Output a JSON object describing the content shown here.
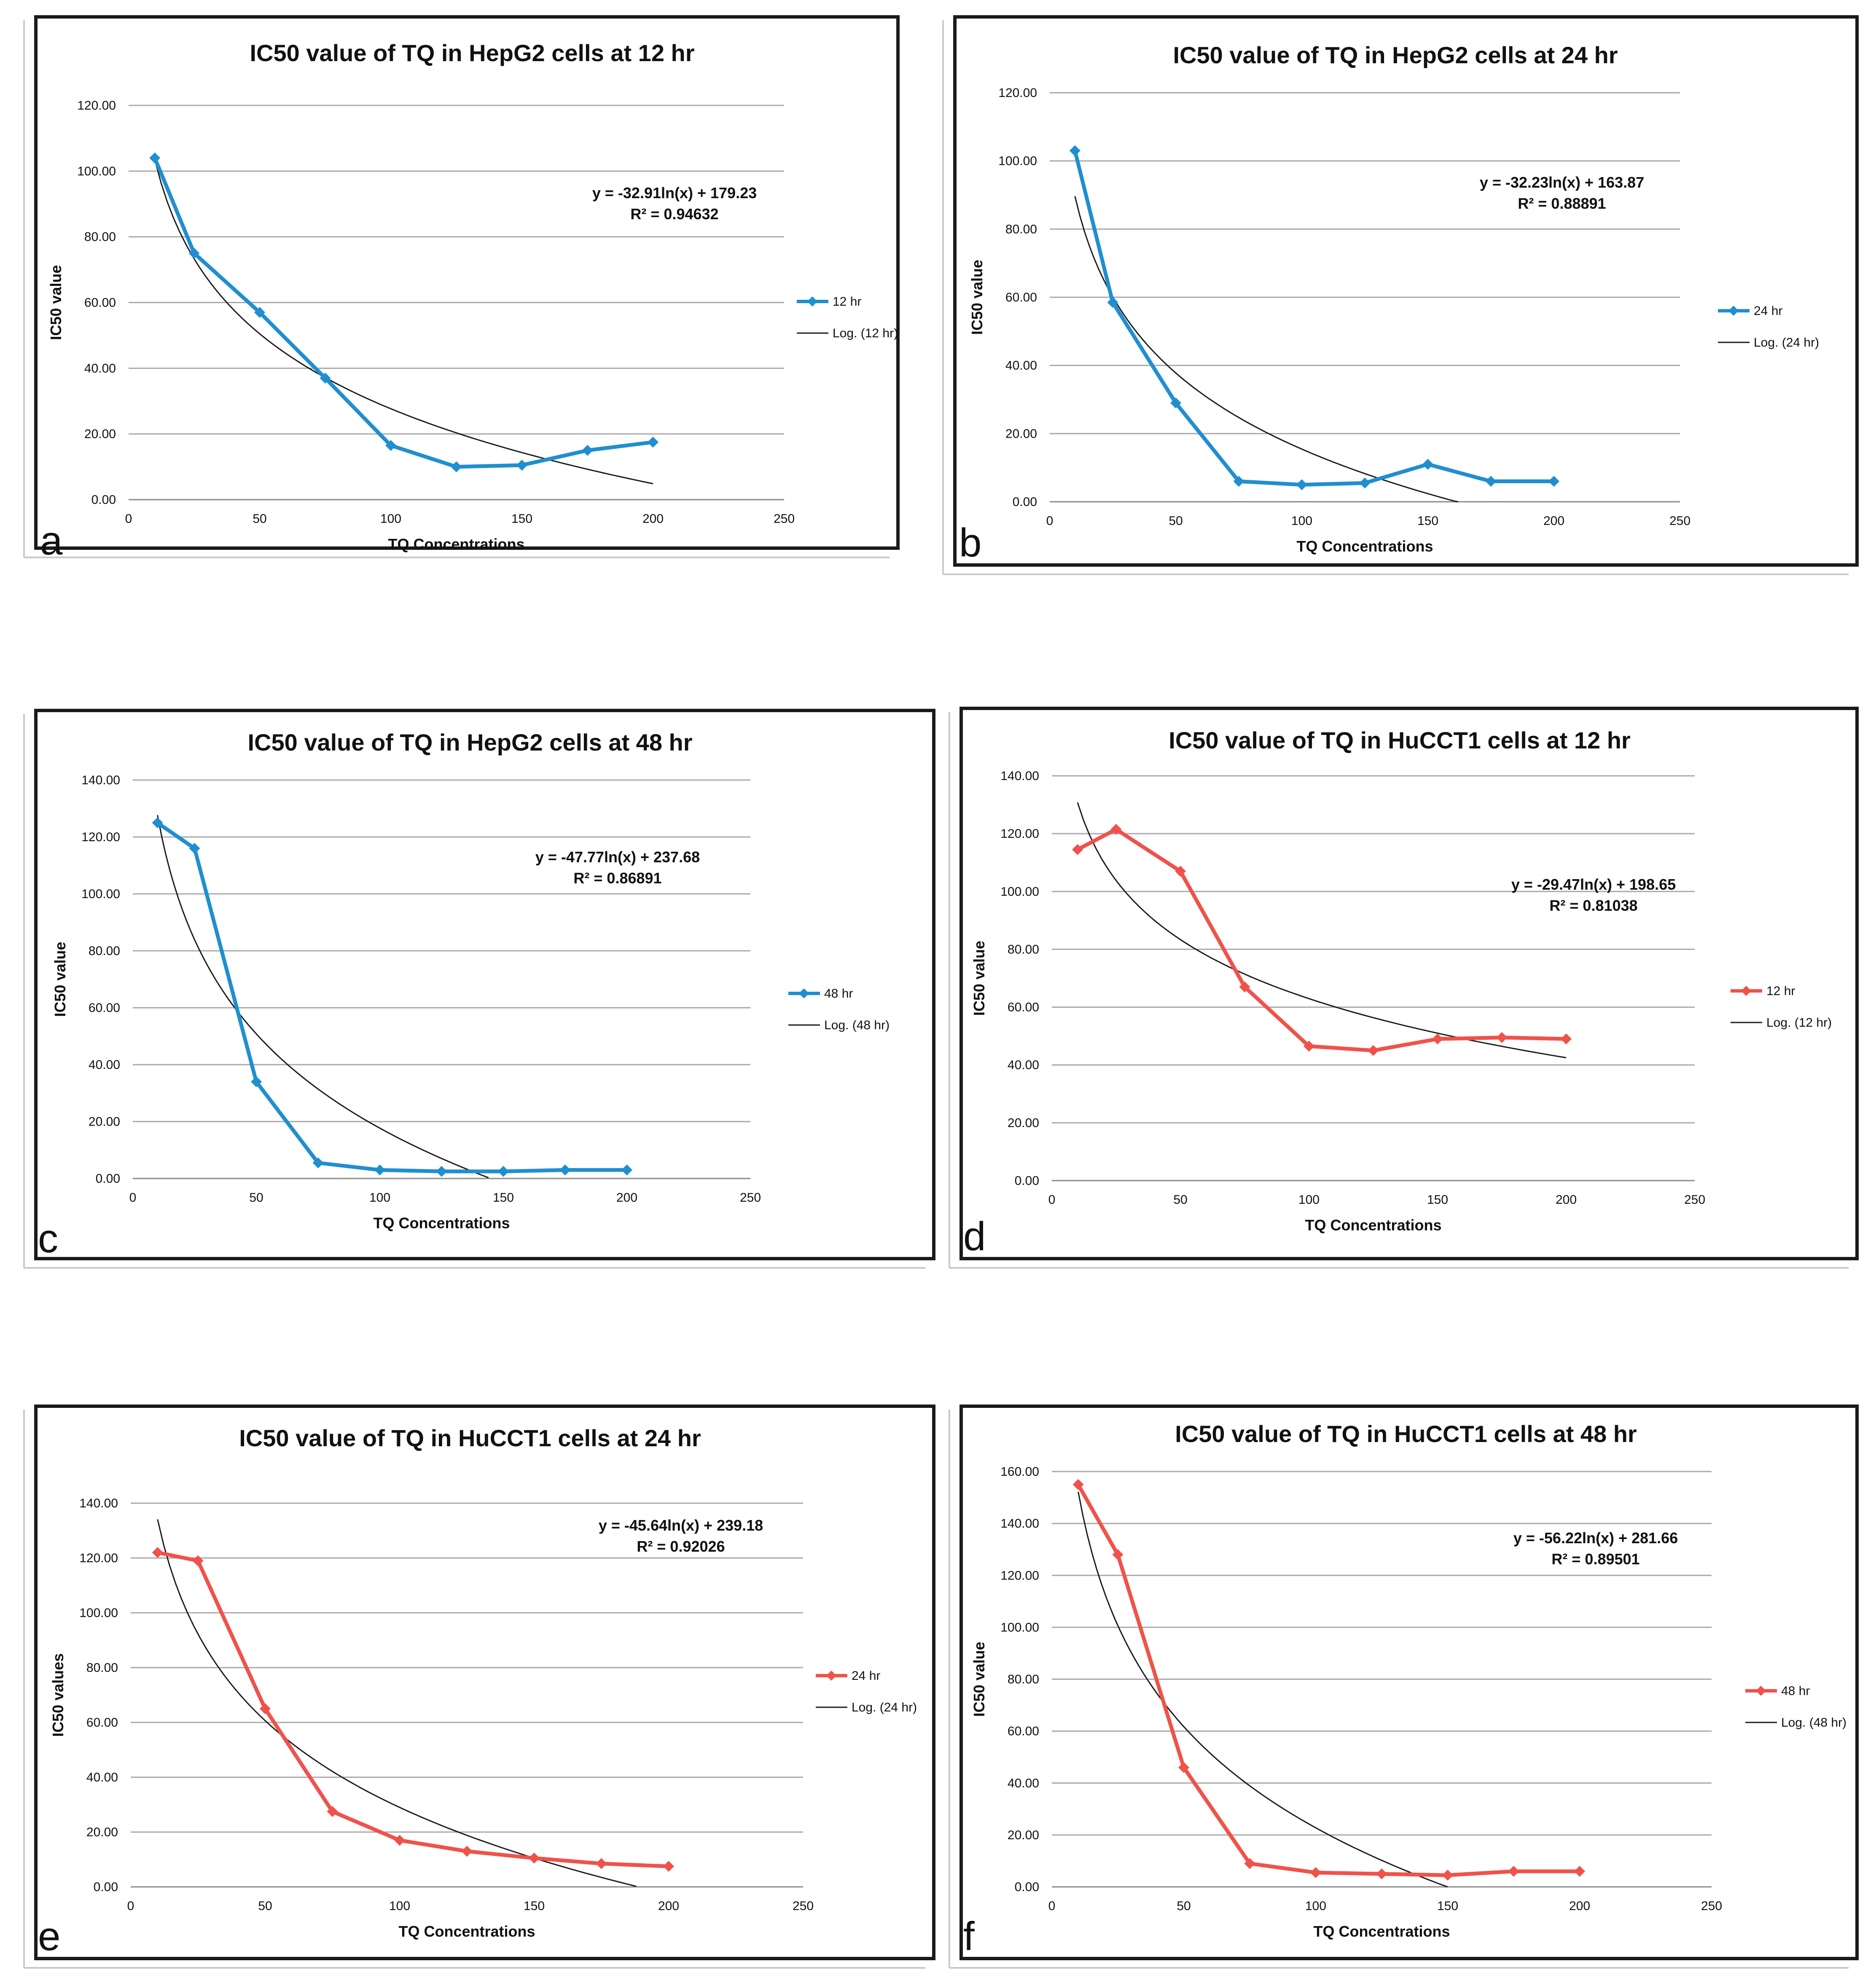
{
  "chart_data": [
    {
      "type": "line",
      "panel_letter": "a",
      "title": "IC50 value of TQ in HepG2 cells at 12 hr",
      "xlabel": "TQ Concentrations",
      "ylabel": "IC50 value",
      "xlim": [
        0,
        250
      ],
      "xticks": [
        0,
        50,
        100,
        150,
        200,
        250
      ],
      "ylim": [
        0,
        120
      ],
      "yticks": [
        "0.00",
        "20.00",
        "40.00",
        "60.00",
        "80.00",
        "100.00",
        "120.00"
      ],
      "grid": true,
      "series": [
        {
          "name": "12 hr",
          "color": "#1f8fcf",
          "marker": "diamond",
          "x": [
            10,
            25,
            50,
            75,
            100,
            125,
            150,
            175,
            200
          ],
          "values": [
            104.0,
            75.0,
            57.0,
            37.0,
            16.5,
            10.0,
            10.5,
            15.0,
            17.5
          ]
        }
      ],
      "trendline": {
        "name": "Log. (12 hr)",
        "a": -32.91,
        "b": 179.23,
        "x_range": [
          10,
          200
        ]
      },
      "equation": "y = -32.91ln(x) + 179.23",
      "r_squared": "R² = 0.94632"
    },
    {
      "type": "line",
      "panel_letter": "b",
      "title": "IC50 value of TQ in HepG2 cells at 24 hr",
      "xlabel": "TQ Concentrations",
      "ylabel": "IC50 value",
      "xlim": [
        0,
        250
      ],
      "xticks": [
        0,
        50,
        100,
        150,
        200,
        250
      ],
      "ylim": [
        0,
        120
      ],
      "yticks": [
        "0.00",
        "20.00",
        "40.00",
        "60.00",
        "80.00",
        "100.00",
        "120.00"
      ],
      "grid": true,
      "series": [
        {
          "name": "24 hr",
          "color": "#1f8fcf",
          "marker": "diamond",
          "x": [
            10,
            25,
            50,
            75,
            100,
            125,
            150,
            175,
            200
          ],
          "values": [
            103.0,
            58.5,
            29.0,
            6.0,
            5.0,
            5.5,
            11.0,
            6.0,
            6.0
          ]
        }
      ],
      "trendline": {
        "name": "Log. (24 hr)",
        "a": -32.23,
        "b": 163.87,
        "x_range": [
          10,
          162
        ]
      },
      "equation": "y = -32.23ln(x) + 163.87",
      "r_squared": "R² = 0.88891"
    },
    {
      "type": "line",
      "panel_letter": "c",
      "title": "IC50 value of TQ in HepG2 cells at 48 hr",
      "xlabel": "TQ Concentrations",
      "ylabel": "IC50 value",
      "xlim": [
        0,
        250
      ],
      "xticks": [
        0,
        50,
        100,
        150,
        200,
        250
      ],
      "ylim": [
        0,
        140
      ],
      "yticks": [
        "0.00",
        "20.00",
        "40.00",
        "60.00",
        "80.00",
        "100.00",
        "120.00",
        "140.00"
      ],
      "grid": true,
      "series": [
        {
          "name": "48 hr",
          "color": "#1f8fcf",
          "marker": "diamond",
          "x": [
            10,
            25,
            50,
            75,
            100,
            125,
            150,
            175,
            200
          ],
          "values": [
            125.0,
            116.0,
            34.0,
            5.5,
            3.0,
            2.5,
            2.5,
            3.0,
            3.0
          ]
        }
      ],
      "trendline": {
        "name": "Log. (48 hr)",
        "a": -47.77,
        "b": 237.68,
        "x_range": [
          10,
          144
        ]
      },
      "equation": "y = -47.77ln(x) + 237.68",
      "r_squared": "R² = 0.86891"
    },
    {
      "type": "line",
      "panel_letter": "d",
      "title": "IC50 value of TQ in HuCCT1 cells at 12 hr",
      "xlabel": "TQ Concentrations",
      "ylabel": "IC50 value",
      "xlim": [
        0,
        250
      ],
      "xticks": [
        0,
        50,
        100,
        150,
        200,
        250
      ],
      "ylim": [
        0,
        140
      ],
      "yticks": [
        "0.00",
        "20.00",
        "40.00",
        "60.00",
        "80.00",
        "100.00",
        "120.00",
        "140.00"
      ],
      "grid": true,
      "series": [
        {
          "name": "12 hr",
          "color": "#f0524a",
          "marker": "diamond",
          "x": [
            10,
            25,
            50,
            75,
            100,
            125,
            150,
            175,
            200
          ],
          "values": [
            114.5,
            121.5,
            107.0,
            67.0,
            46.5,
            45.0,
            49.0,
            49.5,
            49.0
          ]
        }
      ],
      "trendline": {
        "name": "Log. (12 hr)",
        "a": -29.47,
        "b": 198.65,
        "x_range": [
          10,
          200
        ]
      },
      "equation": "y = -29.47ln(x) + 198.65",
      "r_squared": "R² = 0.81038"
    },
    {
      "type": "line",
      "panel_letter": "e",
      "title": "IC50 value of TQ in HuCCT1 cells at 24 hr",
      "xlabel": "TQ Concentrations",
      "ylabel": "IC50 values",
      "xlim": [
        0,
        250
      ],
      "xticks": [
        0,
        50,
        100,
        150,
        200,
        250
      ],
      "ylim": [
        0,
        140
      ],
      "yticks": [
        "0.00",
        "20.00",
        "40.00",
        "60.00",
        "80.00",
        "100.00",
        "120.00",
        "140.00"
      ],
      "grid": true,
      "series": [
        {
          "name": "24 hr",
          "color": "#f0524a",
          "marker": "diamond",
          "x": [
            10,
            25,
            50,
            75,
            100,
            125,
            150,
            175,
            200
          ],
          "values": [
            122.0,
            119.0,
            65.0,
            27.5,
            17.0,
            13.0,
            10.5,
            8.5,
            7.5
          ]
        }
      ],
      "trendline": {
        "name": "Log. (24 hr)",
        "a": -45.64,
        "b": 239.18,
        "x_range": [
          10,
          188
        ]
      },
      "equation": "y = -45.64ln(x) + 239.18",
      "r_squared": "R² = 0.92026"
    },
    {
      "type": "line",
      "panel_letter": "f",
      "title": "IC50 value of TQ in HuCCT1 cells at 48 hr",
      "xlabel": "TQ Concentrations",
      "ylabel": "IC50 value",
      "xlim": [
        0,
        250
      ],
      "xticks": [
        0,
        50,
        100,
        150,
        200,
        250
      ],
      "ylim": [
        0,
        160
      ],
      "yticks": [
        "0.00",
        "20.00",
        "40.00",
        "60.00",
        "80.00",
        "100.00",
        "120.00",
        "140.00",
        "160.00"
      ],
      "grid": true,
      "series": [
        {
          "name": "48 hr",
          "color": "#f0524a",
          "marker": "diamond",
          "x": [
            10,
            25,
            50,
            75,
            100,
            125,
            150,
            175,
            200
          ],
          "values": [
            155.0,
            128.0,
            46.0,
            9.0,
            5.5,
            5.0,
            4.5,
            6.0,
            6.0
          ]
        }
      ],
      "trendline": {
        "name": "Log. (48 hr)",
        "a": -56.22,
        "b": 281.66,
        "x_range": [
          10,
          150
        ]
      },
      "equation": "y = -56.22ln(x) + 281.66",
      "r_squared": "R² = 0.89501"
    }
  ]
}
